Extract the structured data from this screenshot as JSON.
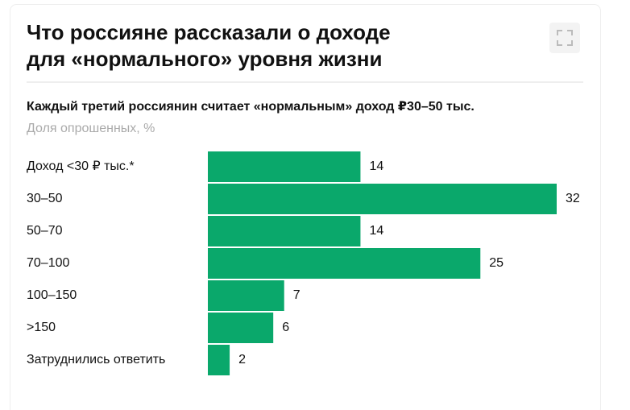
{
  "chart_data": {
    "type": "bar",
    "title": [
      "Что россияне рассказали о доходе",
      "для «нормального» уровня жизни"
    ],
    "subtitle": "Каждый третий россиянин считает «нормальным» доход ₽30–50 тыс.",
    "unit_label": "Доля опрошенных, %",
    "categories": [
      "Доход <30 ₽ тыс.*",
      "30–50",
      "50–70",
      "70–100",
      "100–150",
      ">150",
      "Затруднились ответить"
    ],
    "values": [
      14,
      32,
      14,
      25,
      7,
      6,
      2
    ],
    "color": "#0aa86b"
  }
}
